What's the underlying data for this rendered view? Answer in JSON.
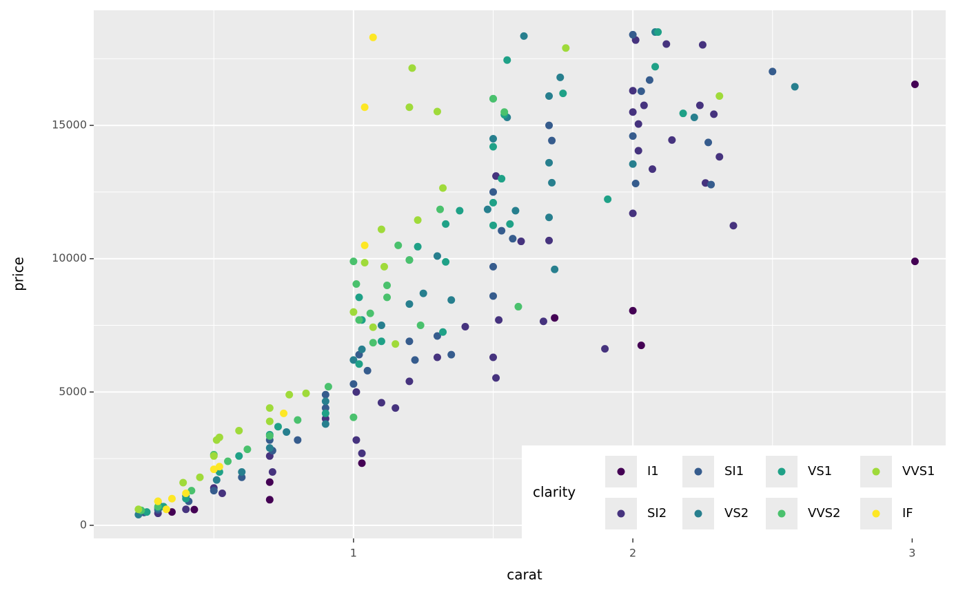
{
  "chart_data": {
    "type": "scatter",
    "x_label": "carat",
    "y_label": "price",
    "xlim": [
      0.07,
      3.12
    ],
    "ylim": [
      -491,
      19315
    ],
    "xticks": [
      1,
      2,
      3
    ],
    "yticks": [
      0,
      5000,
      10000,
      15000
    ],
    "x_minor_grid": [
      0.5,
      1.5,
      2.5
    ],
    "y_minor_grid": [
      2500,
      7500,
      12500,
      17500
    ],
    "grid": true,
    "legend_position": "bottom-right",
    "legend_title": "clarity",
    "series": [
      {
        "name": "I1",
        "color": "#440154",
        "x": [
          3.01,
          3.01,
          2.0,
          2.03,
          1.72,
          1.03,
          0.7,
          0.7,
          0.43,
          0.35
        ],
        "values": [
          16540,
          9900,
          8050,
          6750,
          7780,
          2330,
          960,
          1620,
          590,
          500
        ]
      },
      {
        "name": "SI2",
        "color": "#46337E",
        "x": [
          2.01,
          2.12,
          2.25,
          2.0,
          2.0,
          2.04,
          2.24,
          2.29,
          2.02,
          2.14,
          2.02,
          2.07,
          2.31,
          2.26,
          2.36,
          2.0,
          1.9,
          1.68,
          1.7,
          1.6,
          1.51,
          1.52,
          1.5,
          1.51,
          1.3,
          1.2,
          1.01,
          1.01,
          1.03,
          0.9,
          0.71,
          0.7,
          0.53,
          0.5,
          0.4,
          0.3,
          0.31,
          1.1,
          1.15,
          1.4
        ],
        "values": [
          18200,
          18050,
          18020,
          16300,
          15500,
          15750,
          15750,
          15420,
          15050,
          14450,
          14050,
          13360,
          13820,
          12840,
          11240,
          11700,
          6620,
          7650,
          10680,
          10650,
          13100,
          7700,
          6300,
          5530,
          6300,
          5400,
          5000,
          3200,
          2700,
          4000,
          2000,
          2600,
          1200,
          1400,
          600,
          450,
          700,
          4600,
          4400,
          7450
        ]
      },
      {
        "name": "SI1",
        "color": "#365C8D",
        "x": [
          2.0,
          2.5,
          2.06,
          2.03,
          2.0,
          2.27,
          2.01,
          2.28,
          1.7,
          1.71,
          1.5,
          1.53,
          1.57,
          1.5,
          1.5,
          1.3,
          1.35,
          1.2,
          1.22,
          1.05,
          1.0,
          1.02,
          0.9,
          0.9,
          0.8,
          0.71,
          0.7,
          0.6,
          0.5,
          0.41,
          0.3,
          0.25
        ],
        "values": [
          18400,
          17020,
          16700,
          16280,
          14600,
          14360,
          12820,
          12780,
          15000,
          14430,
          12500,
          11050,
          10750,
          9700,
          8600,
          7100,
          6400,
          6900,
          6200,
          5800,
          5300,
          6400,
          4900,
          4400,
          3200,
          2800,
          3200,
          1800,
          1300,
          900,
          580,
          480
        ]
      },
      {
        "name": "VS2",
        "color": "#277F8E",
        "x": [
          2.08,
          1.61,
          1.74,
          1.7,
          2.0,
          1.7,
          1.71,
          1.7,
          1.72,
          1.5,
          1.55,
          1.48,
          1.58,
          1.3,
          1.2,
          1.2,
          1.35,
          1.25,
          1.1,
          1.03,
          1.0,
          0.9,
          0.9,
          0.76,
          0.7,
          0.6,
          0.51,
          0.4,
          0.3,
          0.23,
          2.58,
          2.22
        ],
        "values": [
          18500,
          18350,
          16800,
          16100,
          13550,
          13600,
          12850,
          11550,
          9600,
          14500,
          15300,
          11850,
          11800,
          10100,
          9950,
          8300,
          8450,
          8700,
          7500,
          6600,
          6200,
          4650,
          3800,
          3500,
          2900,
          2000,
          1700,
          1100,
          650,
          400,
          16450,
          15300
        ]
      },
      {
        "name": "VS1",
        "color": "#1FA187",
        "x": [
          2.09,
          2.08,
          1.55,
          1.5,
          2.18,
          1.54,
          1.5,
          1.91,
          1.5,
          1.5,
          1.33,
          1.75,
          1.53,
          1.56,
          1.23,
          1.33,
          1.02,
          1.03,
          1.1,
          1.02,
          0.9,
          0.73,
          0.7,
          0.59,
          0.52,
          0.4,
          0.32,
          0.26,
          1.32,
          1.38
        ],
        "values": [
          18500,
          17200,
          17450,
          16000,
          15450,
          15400,
          14200,
          12230,
          12100,
          11250,
          11300,
          16200,
          13000,
          11300,
          10450,
          9880,
          8550,
          7700,
          6900,
          6050,
          4200,
          3700,
          3400,
          2600,
          2000,
          1000,
          700,
          500,
          7250,
          11800
        ]
      },
      {
        "name": "VVS2",
        "color": "#4AC16D",
        "x": [
          1.54,
          1.5,
          1.31,
          1.2,
          1.16,
          1.0,
          1.01,
          1.12,
          1.12,
          1.06,
          1.02,
          1.59,
          1.24,
          1.07,
          0.91,
          0.8,
          0.7,
          0.62,
          0.55,
          0.5,
          0.42,
          0.3,
          0.24,
          1.0
        ],
        "values": [
          15500,
          16000,
          11850,
          9950,
          10500,
          9900,
          9050,
          9000,
          8550,
          7950,
          7700,
          8200,
          7500,
          6850,
          5200,
          3950,
          3350,
          2850,
          2400,
          2650,
          1300,
          700,
          560,
          4050
        ]
      },
      {
        "name": "VVS1",
        "color": "#9FDA3A",
        "x": [
          1.76,
          1.21,
          1.2,
          1.3,
          2.31,
          1.32,
          1.23,
          1.1,
          1.04,
          1.11,
          1.0,
          1.07,
          0.77,
          0.83,
          0.7,
          0.7,
          0.59,
          0.52,
          0.51,
          0.5,
          0.45,
          0.39,
          0.3,
          0.23,
          1.15
        ],
        "values": [
          17900,
          17150,
          15680,
          15520,
          16100,
          12650,
          11450,
          11100,
          9850,
          9700,
          8000,
          7430,
          4900,
          4950,
          4400,
          3900,
          3550,
          3300,
          3200,
          2600,
          1800,
          1600,
          900,
          600,
          6800
        ]
      },
      {
        "name": "IF",
        "color": "#FDE725",
        "x": [
          1.07,
          1.04,
          1.04,
          0.75,
          0.52,
          0.5,
          0.4,
          0.35,
          0.3,
          0.33
        ],
        "values": [
          18300,
          15680,
          10500,
          4200,
          2200,
          2100,
          1200,
          1000,
          900,
          600
        ]
      }
    ]
  }
}
